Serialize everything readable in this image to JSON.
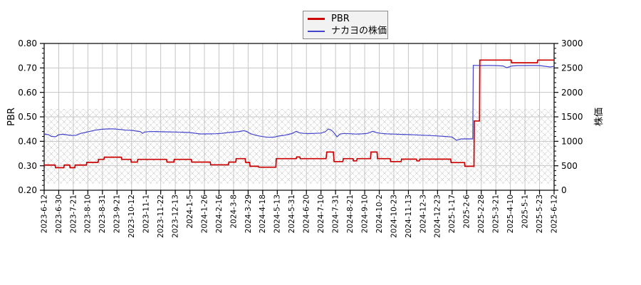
{
  "figure": {
    "background_color": "#ffffff",
    "frame_color": "#000000",
    "grid_color": "#c6c6c6",
    "hatch_color": "#b4b4b4",
    "tick_label_color": "#000000"
  },
  "legend": {
    "items": [
      {
        "label": "PBR",
        "color": "#cc0000"
      },
      {
        "label": "ナカヨの株価",
        "color": "#4444cc"
      }
    ]
  },
  "chart_data": {
    "type": "line",
    "title": "",
    "x_tick_labels": [
      "2023-6-12",
      "2023-6-30",
      "2023-7-21",
      "2023-8-10",
      "2023-8-31",
      "2023-9-21",
      "2023-10-12",
      "2023-11-1",
      "2023-11-22",
      "2023-12-13",
      "2024-1-5",
      "2024-1-26",
      "2024-2-16",
      "2024-3-8",
      "2024-3-29",
      "2024-4-18",
      "2024-5-13",
      "2024-5-31",
      "2024-6-20",
      "2024-7-10",
      "2024-7-31",
      "2024-8-21",
      "2024-9-10",
      "2024-10-2",
      "2024-10-23",
      "2024-11-13",
      "2024-12-3",
      "2024-12-23",
      "2025-1-17",
      "2025-2-6",
      "2025-2-28",
      "2025-3-21",
      "2025-4-10",
      "2025-5-1",
      "2025-5-23",
      "2025-6-12"
    ],
    "left_axis": {
      "label": "PBR",
      "min": 0.2,
      "max": 0.8,
      "major_step": 0.1,
      "minor_step": 0.02,
      "tick_labels": [
        "0.20",
        "0.30",
        "0.40",
        "0.50",
        "0.60",
        "0.70",
        "0.80"
      ],
      "tick_values": [
        0.2,
        0.3,
        0.4,
        0.5,
        0.6,
        0.7,
        0.8
      ]
    },
    "right_axis": {
      "label": "株価",
      "min": 0,
      "max": 3000,
      "major_step": 500,
      "minor_step": 100,
      "tick_labels": [
        "0",
        "500",
        "1000",
        "1500",
        "2000",
        "2500",
        "3000"
      ],
      "tick_values": [
        0,
        500,
        1000,
        1500,
        2000,
        2500,
        3000
      ]
    },
    "shaded_band": {
      "axis": "left",
      "from": 0.226,
      "to": 0.532,
      "pattern": "crosshatch"
    },
    "grid": {
      "vertical": true,
      "horizontal": true
    },
    "legend_position": "top-center",
    "series": [
      {
        "name": "PBR",
        "axis": "left",
        "color": "#cc0000",
        "width": 1.7,
        "points": [
          [
            0,
            0.303
          ],
          [
            0.75,
            0.303
          ],
          [
            0.78,
            0.292
          ],
          [
            1.35,
            0.292
          ],
          [
            1.38,
            0.303
          ],
          [
            1.75,
            0.303
          ],
          [
            1.78,
            0.292
          ],
          [
            2.1,
            0.292
          ],
          [
            2.13,
            0.303
          ],
          [
            2.9,
            0.303
          ],
          [
            2.93,
            0.314
          ],
          [
            3.7,
            0.314
          ],
          [
            3.73,
            0.326
          ],
          [
            4.1,
            0.326
          ],
          [
            4.13,
            0.335
          ],
          [
            5.3,
            0.335
          ],
          [
            5.33,
            0.326
          ],
          [
            5.95,
            0.326
          ],
          [
            5.98,
            0.315
          ],
          [
            6.4,
            0.315
          ],
          [
            6.43,
            0.326
          ],
          [
            8.4,
            0.326
          ],
          [
            8.43,
            0.315
          ],
          [
            8.9,
            0.315
          ],
          [
            8.93,
            0.326
          ],
          [
            10.1,
            0.326
          ],
          [
            10.13,
            0.315
          ],
          [
            11.4,
            0.315
          ],
          [
            11.43,
            0.304
          ],
          [
            12.65,
            0.304
          ],
          [
            12.68,
            0.315
          ],
          [
            13.15,
            0.315
          ],
          [
            13.18,
            0.329
          ],
          [
            13.8,
            0.329
          ],
          [
            13.83,
            0.314
          ],
          [
            14.1,
            0.314
          ],
          [
            14.13,
            0.298
          ],
          [
            14.7,
            0.298
          ],
          [
            14.73,
            0.294
          ],
          [
            15.9,
            0.294
          ],
          [
            15.93,
            0.329
          ],
          [
            17.3,
            0.329
          ],
          [
            17.33,
            0.336
          ],
          [
            17.55,
            0.336
          ],
          [
            17.58,
            0.329
          ],
          [
            19.35,
            0.329
          ],
          [
            19.4,
            0.356
          ],
          [
            19.85,
            0.356
          ],
          [
            19.9,
            0.317
          ],
          [
            20.5,
            0.317
          ],
          [
            20.53,
            0.329
          ],
          [
            21.2,
            0.329
          ],
          [
            21.23,
            0.32
          ],
          [
            21.45,
            0.32
          ],
          [
            21.48,
            0.329
          ],
          [
            22.4,
            0.329
          ],
          [
            22.43,
            0.356
          ],
          [
            22.85,
            0.356
          ],
          [
            22.88,
            0.329
          ],
          [
            23.75,
            0.329
          ],
          [
            23.78,
            0.317
          ],
          [
            24.5,
            0.317
          ],
          [
            24.53,
            0.327
          ],
          [
            25.55,
            0.327
          ],
          [
            25.58,
            0.32
          ],
          [
            25.75,
            0.32
          ],
          [
            25.78,
            0.327
          ],
          [
            27.9,
            0.327
          ],
          [
            27.93,
            0.313
          ],
          [
            28.85,
            0.313
          ],
          [
            28.88,
            0.298
          ],
          [
            29.5,
            0.298
          ],
          [
            29.52,
            0.483
          ],
          [
            29.88,
            0.483
          ],
          [
            29.9,
            0.732
          ],
          [
            32.05,
            0.732
          ],
          [
            32.08,
            0.721
          ],
          [
            33.85,
            0.721
          ],
          [
            33.88,
            0.732
          ],
          [
            35,
            0.732
          ]
        ]
      },
      {
        "name": "ナカヨの株価",
        "axis": "right",
        "color": "#4444cc",
        "width": 1.2,
        "points": [
          [
            0,
            1150
          ],
          [
            0.3,
            1135
          ],
          [
            0.5,
            1100
          ],
          [
            0.8,
            1095
          ],
          [
            1,
            1135
          ],
          [
            1.3,
            1145
          ],
          [
            1.6,
            1130
          ],
          [
            1.9,
            1118
          ],
          [
            2.2,
            1125
          ],
          [
            2.5,
            1160
          ],
          [
            2.8,
            1180
          ],
          [
            3.1,
            1200
          ],
          [
            3.5,
            1228
          ],
          [
            3.9,
            1245
          ],
          [
            4.3,
            1252
          ],
          [
            4.7,
            1255
          ],
          [
            5,
            1248
          ],
          [
            5.3,
            1240
          ],
          [
            5.6,
            1228
          ],
          [
            6,
            1225
          ],
          [
            6.3,
            1210
          ],
          [
            6.6,
            1198
          ],
          [
            6.75,
            1162
          ],
          [
            6.9,
            1190
          ],
          [
            7.2,
            1198
          ],
          [
            7.6,
            1200
          ],
          [
            8,
            1196
          ],
          [
            8.5,
            1192
          ],
          [
            9,
            1190
          ],
          [
            9.5,
            1186
          ],
          [
            10,
            1180
          ],
          [
            10.4,
            1162
          ],
          [
            10.7,
            1150
          ],
          [
            11,
            1150
          ],
          [
            11.4,
            1152
          ],
          [
            11.8,
            1155
          ],
          [
            12.2,
            1162
          ],
          [
            12.6,
            1180
          ],
          [
            13,
            1188
          ],
          [
            13.4,
            1200
          ],
          [
            13.7,
            1218
          ],
          [
            13.9,
            1200
          ],
          [
            14.2,
            1152
          ],
          [
            14.6,
            1118
          ],
          [
            15,
            1095
          ],
          [
            15.4,
            1082
          ],
          [
            15.8,
            1086
          ],
          [
            16.1,
            1108
          ],
          [
            16.5,
            1125
          ],
          [
            17,
            1158
          ],
          [
            17.3,
            1205
          ],
          [
            17.5,
            1175
          ],
          [
            17.8,
            1162
          ],
          [
            18.2,
            1158
          ],
          [
            18.6,
            1162
          ],
          [
            19,
            1168
          ],
          [
            19.3,
            1195
          ],
          [
            19.5,
            1252
          ],
          [
            19.65,
            1238
          ],
          [
            19.8,
            1205
          ],
          [
            19.95,
            1150
          ],
          [
            20.1,
            1092
          ],
          [
            20.3,
            1148
          ],
          [
            20.6,
            1160
          ],
          [
            21,
            1155
          ],
          [
            21.4,
            1148
          ],
          [
            21.8,
            1152
          ],
          [
            22.2,
            1162
          ],
          [
            22.55,
            1205
          ],
          [
            22.8,
            1178
          ],
          [
            23.1,
            1162
          ],
          [
            23.5,
            1152
          ],
          [
            24,
            1148
          ],
          [
            24.5,
            1142
          ],
          [
            25,
            1138
          ],
          [
            25.5,
            1132
          ],
          [
            26,
            1125
          ],
          [
            26.5,
            1118
          ],
          [
            27,
            1110
          ],
          [
            27.5,
            1100
          ],
          [
            28,
            1088
          ],
          [
            28.3,
            1020
          ],
          [
            28.6,
            1048
          ],
          [
            29,
            1050
          ],
          [
            29.42,
            1048
          ],
          [
            29.45,
            2553
          ],
          [
            30,
            2548
          ],
          [
            30.5,
            2550
          ],
          [
            31,
            2548
          ],
          [
            31.5,
            2540
          ],
          [
            31.75,
            2505
          ],
          [
            31.9,
            2520
          ],
          [
            32.1,
            2540
          ],
          [
            32.5,
            2548
          ],
          [
            33,
            2548
          ],
          [
            33.5,
            2550
          ],
          [
            34,
            2548
          ],
          [
            34.5,
            2528
          ],
          [
            34.75,
            2520
          ],
          [
            35,
            2535
          ]
        ]
      }
    ]
  }
}
